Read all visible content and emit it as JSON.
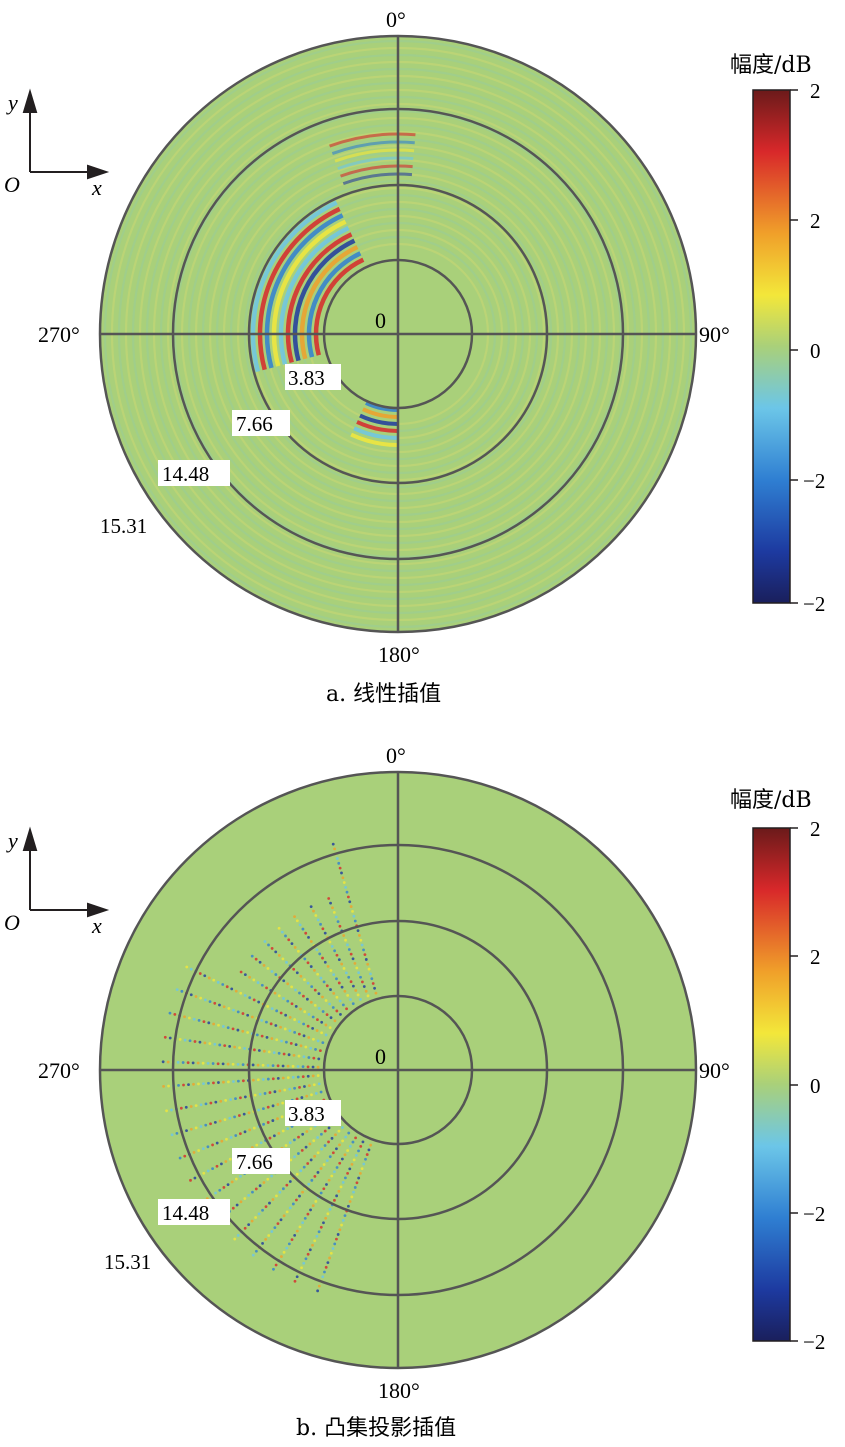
{
  "colors": {
    "background_field": "#a9d07a",
    "grid": "#555555",
    "colormap": [
      "#1a1f5c",
      "#1d3aa0",
      "#2f7fd2",
      "#6cc6e8",
      "#a9d07a",
      "#f3e73a",
      "#f0a02a",
      "#d8282a",
      "#6b1a1a"
    ]
  },
  "chart_data": [
    {
      "type": "heatmap",
      "subtype": "polar",
      "caption": "a. 线性插值",
      "angle_labels": [
        "0°",
        "90°",
        "180°",
        "270°"
      ],
      "center_label": "0",
      "radial_labels": [
        "3.83",
        "7.66",
        "14.48",
        "15.31"
      ],
      "colorbar": {
        "title": "幅度/dB",
        "ticks": [
          "2",
          "2",
          "0",
          "−2",
          "−2"
        ],
        "range": [
          -2,
          2
        ]
      },
      "axes_icon": {
        "origin": "O",
        "x": "x",
        "y": "y"
      },
      "pattern": "smooth-fringes"
    },
    {
      "type": "heatmap",
      "subtype": "polar",
      "caption": "b. 凸集投影插值",
      "angle_labels": [
        "0°",
        "90°",
        "180°",
        "270°"
      ],
      "center_label": "0",
      "radial_labels": [
        "3.83",
        "7.66",
        "14.48",
        "15.31"
      ],
      "colorbar": {
        "title": "幅度/dB",
        "ticks": [
          "2",
          "2",
          "0",
          "−2",
          "−2"
        ],
        "range": [
          -2,
          2
        ]
      },
      "axes_icon": {
        "origin": "O",
        "x": "x",
        "y": "y"
      },
      "pattern": "sparse-rays"
    }
  ]
}
